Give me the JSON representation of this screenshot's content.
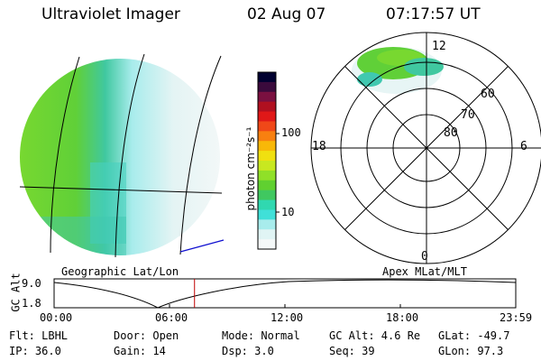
{
  "header": {
    "instrument": "Ultraviolet Imager",
    "date": "02 Aug 07",
    "time": "07:17:57 UT"
  },
  "colorbar": {
    "unit_label": "photon cm⁻²s⁻¹",
    "ticks": [
      "100",
      "10"
    ],
    "colors": [
      "#000030",
      "#3a0a3c",
      "#7a1040",
      "#b01020",
      "#e01818",
      "#f04818",
      "#f88010",
      "#f8b808",
      "#f0e010",
      "#c8e820",
      "#90e028",
      "#60d030",
      "#40c860",
      "#30d8b0",
      "#40e0d8",
      "#a8ecec",
      "#e0f4f4",
      "#f4f8f8"
    ]
  },
  "left_panel": {
    "caption": "Geographic Lat/Lon"
  },
  "right_panel": {
    "caption": "Apex MLat/MLT",
    "mlt_labels": {
      "top": "12",
      "left": "18",
      "right": "6",
      "bottom": "0"
    },
    "lat_labels": [
      "60",
      "70",
      "80"
    ]
  },
  "timeline": {
    "axis_title": "GC Alt",
    "y_ticks": [
      "9.0",
      "1.8"
    ],
    "x_ticks": [
      "00:00",
      "06:00",
      "12:00",
      "18:00",
      "23:59"
    ],
    "current_time_hours": 7.3
  },
  "info": {
    "filter": "Flt: LBHL",
    "ip": "IP: 36.0",
    "door": "Door: Open",
    "gain": "Gain: 14",
    "mode": "Mode: Normal",
    "dsp": "Dsp:    3.0",
    "gc_alt": "GC Alt: 4.6 Re",
    "seq": "Seq: 39",
    "glat": "GLat: -49.7",
    "glon": "GLon:  97.3"
  }
}
